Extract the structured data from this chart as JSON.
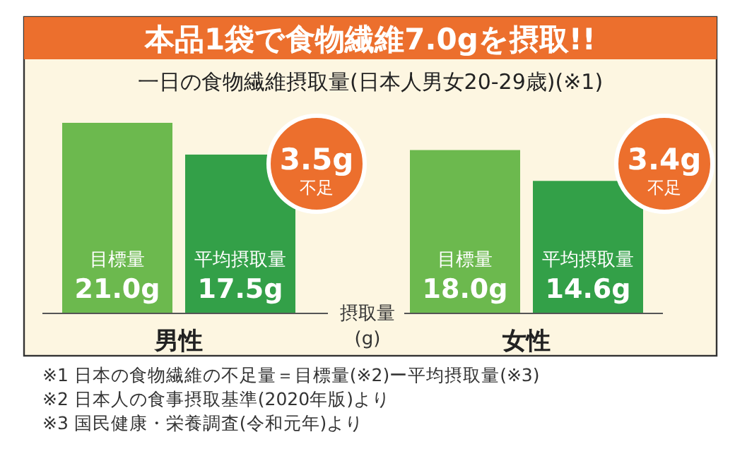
{
  "chart_data": {
    "type": "bar",
    "title": "本品1袋で食物繊維7.0gを摂取!!",
    "subtitle": "一日の食物繊維摂取量(日本人男女20-29歳)(※1)",
    "xlabel": "摂取量\n(g)",
    "categories": [
      "男性",
      "女性"
    ],
    "series": [
      {
        "name": "目標量",
        "color": "#6cb94e",
        "values": [
          21.0,
          18.0
        ],
        "value_labels": [
          "21.0g",
          "18.0g"
        ]
      },
      {
        "name": "平均摂取量",
        "color": "#33a048",
        "values": [
          17.5,
          14.6
        ],
        "value_labels": [
          "17.5g",
          "14.6g"
        ]
      }
    ],
    "annotations": [
      "3.5g\n不足",
      "3.4g\n不足",
      "※1 日本の食物繊維の不足量＝目標量(※2)ー平均摂取量(※3)",
      "※2 日本人の食事摂取基準(2020年版)より",
      "※3 国民健康・栄養調査(令和元年)より"
    ]
  }
}
